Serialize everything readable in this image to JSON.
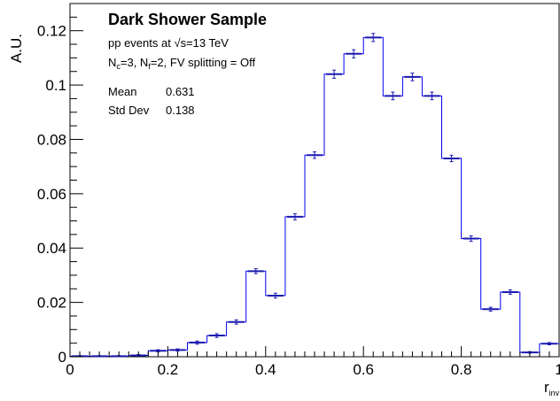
{
  "chart_data": {
    "type": "bar",
    "title": "Dark Shower Sample",
    "info_lines": [
      {
        "parts": [
          "pp events at ",
          "√s",
          "=13 TeV"
        ]
      },
      {
        "parts": [
          "N",
          "c",
          "=3, N",
          "f",
          "=2, FV splitting = Off"
        ]
      }
    ],
    "stats": [
      {
        "label": "Mean",
        "value": "0.631"
      },
      {
        "label": "Std Dev",
        "value": "0.138"
      }
    ],
    "xlabel": "r",
    "xlabel_sub": "inv",
    "ylabel": "A.U.",
    "xlim": [
      0,
      1
    ],
    "ylim": [
      0,
      0.13
    ],
    "x_ticks": [
      "0",
      "0.2",
      "0.4",
      "0.6",
      "0.8",
      "1"
    ],
    "y_ticks": [
      "0",
      "0.02",
      "0.04",
      "0.06",
      "0.08",
      "0.1",
      "0.12"
    ],
    "bin_width": 0.04,
    "bin_edges_start": 0,
    "values": [
      0.0002,
      0.0002,
      0.0002,
      0.0005,
      0.0022,
      0.0025,
      0.0052,
      0.0078,
      0.0128,
      0.0315,
      0.0225,
      0.0515,
      0.0742,
      0.104,
      0.1115,
      0.1175,
      0.096,
      0.103,
      0.096,
      0.073,
      0.0435,
      0.0175,
      0.0238,
      0.0016,
      0.0048
    ],
    "errors": [
      0.0002,
      0.0002,
      0.0002,
      0.0003,
      0.0004,
      0.0004,
      0.0006,
      0.0007,
      0.0008,
      0.0009,
      0.0009,
      0.0011,
      0.0012,
      0.0015,
      0.0015,
      0.0015,
      0.0014,
      0.0014,
      0.0014,
      0.0012,
      0.001,
      0.0007,
      0.0008,
      0.0003,
      0.0004
    ],
    "line_color": "#0000ee",
    "marker_color": "#1a1ab0"
  }
}
